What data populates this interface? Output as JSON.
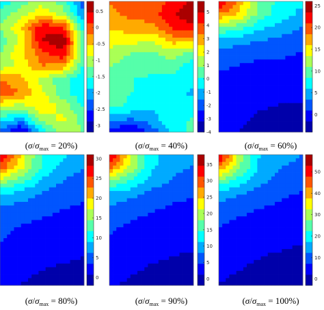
{
  "chart_data": [
    {
      "type": "heatmap",
      "caption": {
        "sigma": "σ",
        "slash": "/",
        "sigma2": "σ",
        "sub": "max",
        "eq": " = ",
        "pct": "20%"
      },
      "colorbar": {
        "range": [
          -3.2,
          0.8
        ],
        "ticks": [
          -3,
          -2.5,
          -2,
          -1.5,
          -1,
          -0.5,
          0,
          0.5
        ]
      },
      "field": [
        [
          0.35,
          0.45,
          0.55,
          0.45,
          0.2
        ],
        [
          0.45,
          0.55,
          0.65,
          0.55,
          0.25
        ],
        [
          0.5,
          0.65,
          0.9,
          0.85,
          0.35
        ],
        [
          0.45,
          0.6,
          0.92,
          0.98,
          0.45
        ],
        [
          0.5,
          0.65,
          0.8,
          0.9,
          0.45
        ],
        [
          0.55,
          0.6,
          0.75,
          0.7,
          0.4
        ],
        [
          0.75,
          0.7,
          0.55,
          0.45,
          0.35
        ],
        [
          0.8,
          0.75,
          0.6,
          0.45,
          0.35
        ],
        [
          0.6,
          0.55,
          0.65,
          0.55,
          0.4
        ],
        [
          0.4,
          0.3,
          0.55,
          0.6,
          0.45
        ],
        [
          0.2,
          0.05,
          0.35,
          0.55,
          0.5
        ]
      ]
    },
    {
      "type": "heatmap",
      "caption": {
        "sigma": "σ",
        "slash": "/",
        "sigma2": "σ",
        "sub": "max",
        "eq": " = ",
        "pct": "40%"
      },
      "colorbar": {
        "range": [
          -4,
          5.8
        ],
        "ticks": [
          -4,
          -3,
          -2,
          -1,
          0,
          1,
          2,
          3,
          4,
          5
        ]
      },
      "field": [
        [
          0.75,
          0.8,
          0.78,
          0.85,
          0.95
        ],
        [
          0.72,
          0.78,
          0.8,
          0.9,
          0.98
        ],
        [
          0.68,
          0.7,
          0.72,
          0.85,
          0.9
        ],
        [
          0.62,
          0.62,
          0.58,
          0.7,
          0.7
        ],
        [
          0.55,
          0.5,
          0.48,
          0.55,
          0.45
        ],
        [
          0.5,
          0.45,
          0.45,
          0.45,
          0.35
        ],
        [
          0.48,
          0.42,
          0.4,
          0.4,
          0.35
        ],
        [
          0.45,
          0.42,
          0.38,
          0.36,
          0.32
        ],
        [
          0.45,
          0.4,
          0.35,
          0.38,
          0.35
        ],
        [
          0.3,
          0.25,
          0.3,
          0.4,
          0.42
        ],
        [
          0.15,
          0.05,
          0.2,
          0.35,
          0.45
        ]
      ]
    },
    {
      "type": "heatmap",
      "caption": {
        "sigma": "σ",
        "slash": "/",
        "sigma2": "σ",
        "sub": "max",
        "eq": " = ",
        "pct": "60%"
      },
      "colorbar": {
        "range": [
          -4,
          26
        ],
        "ticks": [
          0,
          5,
          10,
          15,
          20,
          25
        ]
      },
      "field": [
        [
          0.95,
          0.7,
          0.45,
          0.4,
          0.35
        ],
        [
          0.75,
          0.65,
          0.45,
          0.38,
          0.3
        ],
        [
          0.5,
          0.45,
          0.35,
          0.3,
          0.25
        ],
        [
          0.3,
          0.28,
          0.25,
          0.22,
          0.2
        ],
        [
          0.22,
          0.2,
          0.18,
          0.18,
          0.16
        ],
        [
          0.18,
          0.16,
          0.15,
          0.15,
          0.14
        ],
        [
          0.15,
          0.13,
          0.12,
          0.12,
          0.12
        ],
        [
          0.14,
          0.12,
          0.1,
          0.1,
          0.1
        ],
        [
          0.13,
          0.11,
          0.09,
          0.08,
          0.08
        ],
        [
          0.12,
          0.1,
          0.07,
          0.06,
          0.06
        ],
        [
          0.1,
          0.08,
          0.05,
          0.04,
          0.04
        ]
      ]
    },
    {
      "type": "heatmap",
      "caption": {
        "sigma": "σ",
        "slash": "/",
        "sigma2": "σ",
        "sub": "max",
        "eq": " = ",
        "pct": "80%"
      },
      "colorbar": {
        "range": [
          -2,
          31
        ],
        "ticks": [
          0,
          5,
          10,
          15,
          20,
          25,
          30
        ]
      },
      "field": [
        [
          0.95,
          0.65,
          0.4,
          0.35,
          0.3
        ],
        [
          0.8,
          0.6,
          0.4,
          0.3,
          0.25
        ],
        [
          0.55,
          0.45,
          0.32,
          0.25,
          0.2
        ],
        [
          0.35,
          0.3,
          0.24,
          0.2,
          0.18
        ],
        [
          0.25,
          0.22,
          0.2,
          0.17,
          0.16
        ],
        [
          0.2,
          0.18,
          0.16,
          0.15,
          0.14
        ],
        [
          0.18,
          0.15,
          0.14,
          0.13,
          0.12
        ],
        [
          0.16,
          0.14,
          0.12,
          0.11,
          0.1
        ],
        [
          0.15,
          0.12,
          0.1,
          0.09,
          0.08
        ],
        [
          0.12,
          0.1,
          0.08,
          0.07,
          0.06
        ],
        [
          0.1,
          0.08,
          0.06,
          0.05,
          0.05
        ]
      ]
    },
    {
      "type": "heatmap",
      "caption": {
        "sigma": "σ",
        "slash": "/",
        "sigma2": "σ",
        "sub": "max",
        "eq": " = ",
        "pct": "90%"
      },
      "colorbar": {
        "range": [
          -2,
          38
        ],
        "ticks": [
          0,
          5,
          10,
          15,
          20,
          25,
          30,
          35
        ]
      },
      "field": [
        [
          0.95,
          0.6,
          0.35,
          0.3,
          0.28
        ],
        [
          0.78,
          0.55,
          0.35,
          0.28,
          0.24
        ],
        [
          0.52,
          0.42,
          0.3,
          0.24,
          0.2
        ],
        [
          0.32,
          0.28,
          0.22,
          0.19,
          0.17
        ],
        [
          0.24,
          0.2,
          0.18,
          0.16,
          0.15
        ],
        [
          0.19,
          0.17,
          0.15,
          0.14,
          0.13
        ],
        [
          0.17,
          0.14,
          0.13,
          0.12,
          0.11
        ],
        [
          0.15,
          0.13,
          0.11,
          0.1,
          0.09
        ],
        [
          0.13,
          0.11,
          0.09,
          0.08,
          0.07
        ],
        [
          0.11,
          0.09,
          0.07,
          0.06,
          0.06
        ],
        [
          0.09,
          0.07,
          0.05,
          0.05,
          0.04
        ]
      ]
    },
    {
      "type": "heatmap",
      "caption": {
        "sigma": "σ",
        "slash": "/",
        "sigma2": "σ",
        "sub": "max",
        "eq": " = ",
        "pct": "100%"
      },
      "colorbar": {
        "range": [
          -3,
          58
        ],
        "ticks": [
          0,
          10,
          20,
          30,
          40,
          50
        ]
      },
      "field": [
        [
          0.95,
          0.55,
          0.32,
          0.28,
          0.25
        ],
        [
          0.75,
          0.5,
          0.3,
          0.25,
          0.22
        ],
        [
          0.48,
          0.38,
          0.27,
          0.22,
          0.19
        ],
        [
          0.3,
          0.26,
          0.21,
          0.18,
          0.16
        ],
        [
          0.22,
          0.19,
          0.17,
          0.15,
          0.14
        ],
        [
          0.18,
          0.16,
          0.14,
          0.13,
          0.12
        ],
        [
          0.16,
          0.13,
          0.12,
          0.11,
          0.1
        ],
        [
          0.14,
          0.12,
          0.1,
          0.09,
          0.08
        ],
        [
          0.12,
          0.1,
          0.08,
          0.07,
          0.06
        ],
        [
          0.1,
          0.08,
          0.06,
          0.05,
          0.05
        ],
        [
          0.08,
          0.06,
          0.05,
          0.04,
          0.04
        ]
      ]
    }
  ]
}
